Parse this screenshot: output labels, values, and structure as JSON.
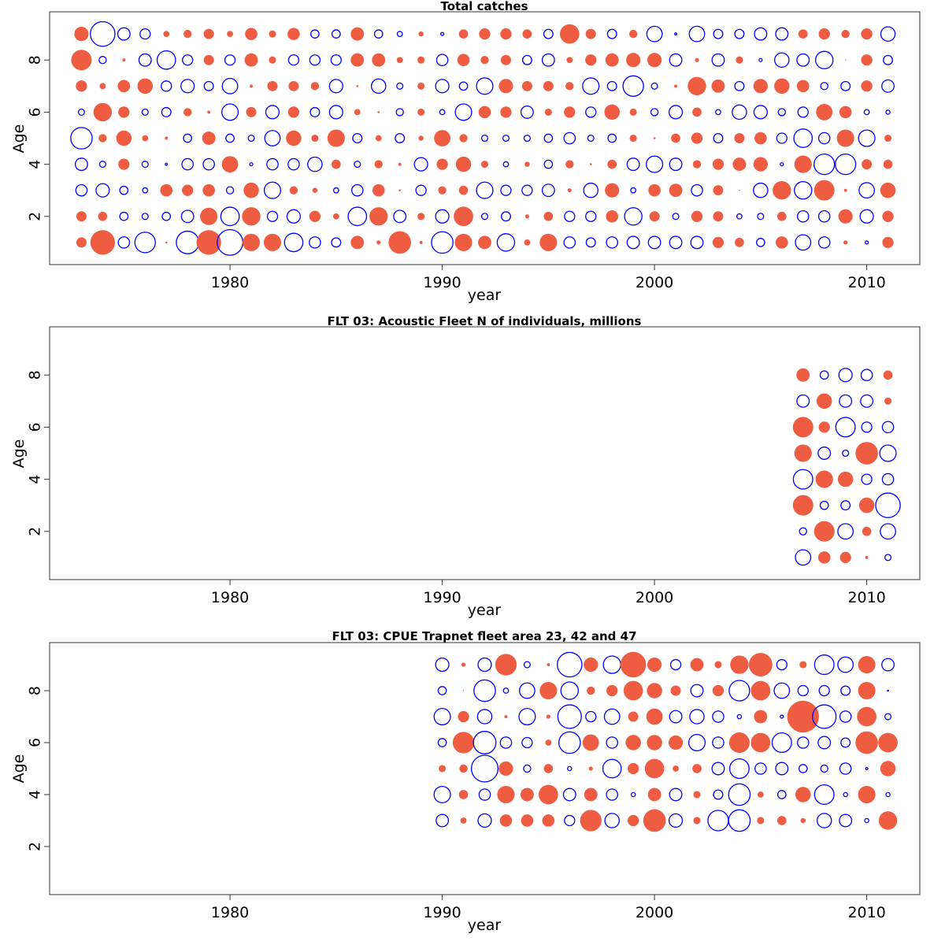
{
  "chart_data": [
    {
      "type": "scatter",
      "subtype": "bubble-residuals",
      "title": "Total catches",
      "xlabel": "year",
      "ylabel": "Age",
      "xlim": [
        1971.5,
        2012.5
      ],
      "ylim": [
        0.15,
        9.85
      ],
      "xticks": [
        1980,
        1990,
        2000,
        2010
      ],
      "yticks": [
        2,
        4,
        6,
        8
      ],
      "legend": "none",
      "encoding": "bubble radius proportional to |value|; positive = filled red, negative = open blue",
      "colors": {
        "positive": "#EE5C42",
        "negative": "#0000FF"
      },
      "years": [
        1973,
        1974,
        1975,
        1976,
        1977,
        1978,
        1979,
        1980,
        1981,
        1982,
        1983,
        1984,
        1985,
        1986,
        1987,
        1988,
        1989,
        1990,
        1991,
        1992,
        1993,
        1994,
        1995,
        1996,
        1997,
        1998,
        1999,
        2000,
        2001,
        2002,
        2003,
        2004,
        2005,
        2006,
        2007,
        2008,
        2009,
        2010,
        2011
      ],
      "ages": [
        9,
        8,
        7,
        6,
        5,
        4,
        3,
        2,
        1
      ],
      "values": [
        [
          0.7,
          -1.2,
          -0.6,
          -0.5,
          0.3,
          0.4,
          0.5,
          0.3,
          0.6,
          0.35,
          0.6,
          -0.4,
          -0.4,
          0.65,
          -0.4,
          -0.25,
          0.25,
          -0.15,
          0.45,
          0.55,
          0.55,
          0.45,
          -0.45,
          0.95,
          0.5,
          -0.45,
          0.4,
          -0.75,
          -0.1,
          -0.75,
          -0.45,
          -0.45,
          -0.6,
          -0.6,
          0.45,
          0.55,
          0.4,
          0.55,
          -0.7
        ],
        [
          1.0,
          -0.35,
          0.15,
          -0.6,
          -0.9,
          -0.5,
          0.5,
          -0.5,
          0.65,
          0.35,
          -0.5,
          -0.5,
          -0.5,
          0.65,
          0.65,
          0.3,
          0.35,
          -0.55,
          0.6,
          0.4,
          0.5,
          -0.45,
          -0.6,
          0.3,
          0.55,
          0.65,
          0.7,
          0.7,
          -0.6,
          0.2,
          -0.6,
          0.35,
          -0.15,
          -0.7,
          -0.6,
          -0.85,
          0.05,
          0.55,
          -0.45
        ],
        [
          0.55,
          0.3,
          0.6,
          0.75,
          -0.5,
          -0.65,
          -0.45,
          -0.75,
          0.15,
          0.5,
          0.5,
          0.4,
          -0.65,
          0.1,
          -0.7,
          -0.3,
          0.35,
          -0.65,
          -0.4,
          -0.8,
          0.7,
          0.5,
          0.5,
          0.4,
          -0.8,
          -0.45,
          -1.0,
          -0.3,
          0.15,
          0.9,
          0.65,
          -0.45,
          0.7,
          0.75,
          0.6,
          -0.35,
          -0.45,
          0.55,
          -0.6
        ],
        [
          -0.3,
          0.9,
          0.55,
          -0.3,
          -0.45,
          0.4,
          0.15,
          -0.8,
          0.5,
          -0.65,
          0.55,
          -0.45,
          -0.65,
          0.3,
          0.1,
          -0.35,
          0.35,
          -0.25,
          -0.8,
          0.6,
          0.55,
          -0.6,
          0.35,
          0.55,
          -0.5,
          0.75,
          0.35,
          -0.35,
          -0.65,
          0.45,
          -0.25,
          -0.7,
          -0.65,
          -0.35,
          -0.5,
          0.8,
          0.6,
          -0.25,
          -0.2
        ],
        [
          -1.05,
          0.4,
          0.75,
          0.3,
          0.15,
          -0.4,
          0.65,
          -0.4,
          -0.3,
          -0.75,
          0.75,
          0.35,
          0.85,
          -0.45,
          0.3,
          -0.45,
          0.25,
          0.8,
          0.4,
          -0.3,
          -0.3,
          -0.3,
          -0.4,
          -0.55,
          -0.3,
          -0.4,
          0.35,
          0.1,
          0.45,
          0.55,
          -0.45,
          0.5,
          0.6,
          -0.5,
          -0.9,
          -0.55,
          0.85,
          -0.8,
          0.35
        ],
        [
          -0.6,
          -0.3,
          0.55,
          -0.3,
          -0.1,
          -0.55,
          -0.55,
          0.8,
          -0.15,
          -0.55,
          -0.55,
          -0.7,
          0.45,
          -0.3,
          0.4,
          0.15,
          -0.65,
          0.55,
          0.75,
          0.35,
          -0.25,
          0.25,
          -0.4,
          0.4,
          0.1,
          0.45,
          -0.6,
          -0.8,
          -0.6,
          0.4,
          0.55,
          0.65,
          0.7,
          -0.15,
          0.85,
          -1.0,
          -1.0,
          0.5,
          0.45
        ],
        [
          -0.55,
          -0.65,
          -0.4,
          -0.25,
          0.6,
          0.55,
          0.6,
          -0.35,
          0.75,
          -0.8,
          0.4,
          0.25,
          -0.25,
          -0.55,
          0.6,
          0.1,
          -0.5,
          0.4,
          0.45,
          -0.8,
          -0.5,
          -0.5,
          -0.6,
          0.2,
          -0.7,
          0.7,
          -0.25,
          0.6,
          0.65,
          -0.55,
          0.5,
          0.05,
          -0.7,
          0.9,
          -0.85,
          1.0,
          0.15,
          -0.75,
          0.75
        ],
        [
          0.5,
          0.45,
          -0.4,
          -0.3,
          -0.4,
          -0.6,
          0.85,
          -0.9,
          0.9,
          -0.5,
          -0.65,
          0.55,
          0.3,
          -0.9,
          0.9,
          -0.6,
          0.35,
          -0.65,
          0.95,
          -0.3,
          -0.45,
          0.2,
          0.45,
          -0.5,
          -0.5,
          0.6,
          -0.85,
          0.5,
          -0.3,
          0.55,
          0.5,
          -0.25,
          -0.3,
          0.45,
          -0.55,
          -0.55,
          0.7,
          -0.65,
          0.55
        ],
        [
          0.5,
          1.2,
          -0.55,
          -1.0,
          0.1,
          -1.1,
          1.2,
          -1.25,
          0.85,
          0.85,
          -0.9,
          -0.55,
          -0.45,
          0.65,
          0.2,
          1.1,
          0.15,
          -1.05,
          0.85,
          0.65,
          -0.85,
          0.3,
          0.85,
          -0.55,
          -0.45,
          -0.55,
          -0.6,
          -0.6,
          -0.6,
          -0.6,
          0.55,
          0.45,
          -0.4,
          0.6,
          -0.75,
          -0.55,
          0.2,
          -0.15,
          0.55
        ]
      ]
    },
    {
      "type": "scatter",
      "subtype": "bubble-residuals",
      "title": "FLT 03: Acoustic Fleet  N of individuals, millions",
      "xlabel": "year",
      "ylabel": "Age",
      "xlim": [
        1971.5,
        2012.5
      ],
      "ylim": [
        0.15,
        9.85
      ],
      "xticks": [
        1980,
        1990,
        2000,
        2010
      ],
      "yticks": [
        2,
        4,
        6,
        8
      ],
      "legend": "none",
      "colors": {
        "positive": "#EE5C42",
        "negative": "#0000FF"
      },
      "years": [
        2007,
        2008,
        2009,
        2010,
        2011
      ],
      "ages": [
        8,
        7,
        6,
        5,
        4,
        3,
        2,
        1
      ],
      "values": [
        [
          0.65,
          -0.4,
          -0.65,
          -0.55,
          0.45
        ],
        [
          -0.6,
          0.75,
          -0.6,
          -0.6,
          0.35
        ],
        [
          1.0,
          0.55,
          -0.95,
          -0.5,
          -0.55
        ],
        [
          0.85,
          -0.6,
          -0.3,
          1.1,
          -0.8
        ],
        [
          -0.95,
          0.85,
          0.75,
          -0.5,
          -0.55
        ],
        [
          1.0,
          -0.4,
          -0.45,
          0.75,
          -1.2
        ],
        [
          -0.35,
          1.0,
          -0.75,
          0.45,
          -0.75
        ],
        [
          -0.75,
          0.6,
          0.55,
          0.15,
          -0.3
        ]
      ]
    },
    {
      "type": "scatter",
      "subtype": "bubble-residuals",
      "title": "FLT 03: CPUE Trapnet fleet area 23, 42 and 47",
      "xlabel": "year",
      "ylabel": "Age",
      "xlim": [
        1971.5,
        2012.5
      ],
      "ylim": [
        0.15,
        9.85
      ],
      "xticks": [
        1980,
        1990,
        2000,
        2010
      ],
      "yticks": [
        2,
        4,
        6,
        8
      ],
      "legend": "none",
      "colors": {
        "positive": "#EE5C42",
        "negative": "#0000FF"
      },
      "years": [
        1990,
        1991,
        1992,
        1993,
        1994,
        1995,
        1996,
        1997,
        1998,
        1999,
        2000,
        2001,
        2002,
        2003,
        2004,
        2005,
        2006,
        2007,
        2008,
        2009,
        2010,
        2011
      ],
      "ages": [
        9,
        8,
        7,
        6,
        5,
        4,
        3
      ],
      "values": [
        [
          -0.65,
          0.2,
          -0.65,
          1.05,
          -0.3,
          0.15,
          -1.2,
          0.7,
          -0.85,
          1.25,
          0.7,
          -0.5,
          0.65,
          0.35,
          0.9,
          1.15,
          -0.5,
          0.35,
          -0.95,
          -0.75,
          0.85,
          -0.6
        ],
        [
          -0.4,
          0.05,
          -1.05,
          -0.25,
          -0.75,
          0.85,
          -0.85,
          0.4,
          0.55,
          0.95,
          0.75,
          0.5,
          -0.6,
          0.55,
          -1.0,
          0.95,
          -0.75,
          -0.5,
          -0.5,
          -0.45,
          0.85,
          -0.05
        ],
        [
          -0.8,
          0.55,
          -0.7,
          0.15,
          -0.8,
          0.2,
          -1.15,
          -0.5,
          -0.75,
          0.5,
          0.8,
          -0.6,
          -0.7,
          -0.55,
          -0.2,
          0.65,
          -0.15,
          1.55,
          -1.15,
          -0.55,
          0.95,
          -0.3
        ],
        [
          -0.4,
          1.05,
          -1.1,
          -0.55,
          -0.5,
          0.3,
          -1.05,
          0.8,
          -0.55,
          0.75,
          0.75,
          0.7,
          -0.8,
          -0.55,
          1.0,
          0.95,
          -0.95,
          -0.55,
          -0.6,
          -0.45,
          1.1,
          0.95
        ],
        [
          0.35,
          0.4,
          -1.3,
          0.7,
          -0.35,
          0.45,
          -0.2,
          0.2,
          -0.9,
          0.55,
          0.95,
          0.3,
          0.45,
          -0.6,
          -0.95,
          -0.55,
          -0.6,
          -0.4,
          -0.35,
          -0.55,
          -0.1,
          0.75
        ],
        [
          -0.8,
          0.45,
          -0.55,
          0.85,
          0.65,
          0.95,
          -0.6,
          0.65,
          -0.55,
          -0.2,
          0.65,
          -0.6,
          0.35,
          -0.45,
          -1.05,
          0.3,
          -0.4,
          0.75,
          -0.95,
          -0.2,
          0.85,
          -0.2
        ],
        [
          -0.6,
          0.3,
          -0.65,
          0.6,
          0.6,
          0.6,
          -0.5,
          1.05,
          -0.7,
          0.55,
          1.1,
          -0.65,
          0.35,
          -1.0,
          -1.05,
          0.35,
          0.45,
          0.25,
          -0.7,
          -0.6,
          -0.2,
          0.9
        ]
      ]
    }
  ]
}
